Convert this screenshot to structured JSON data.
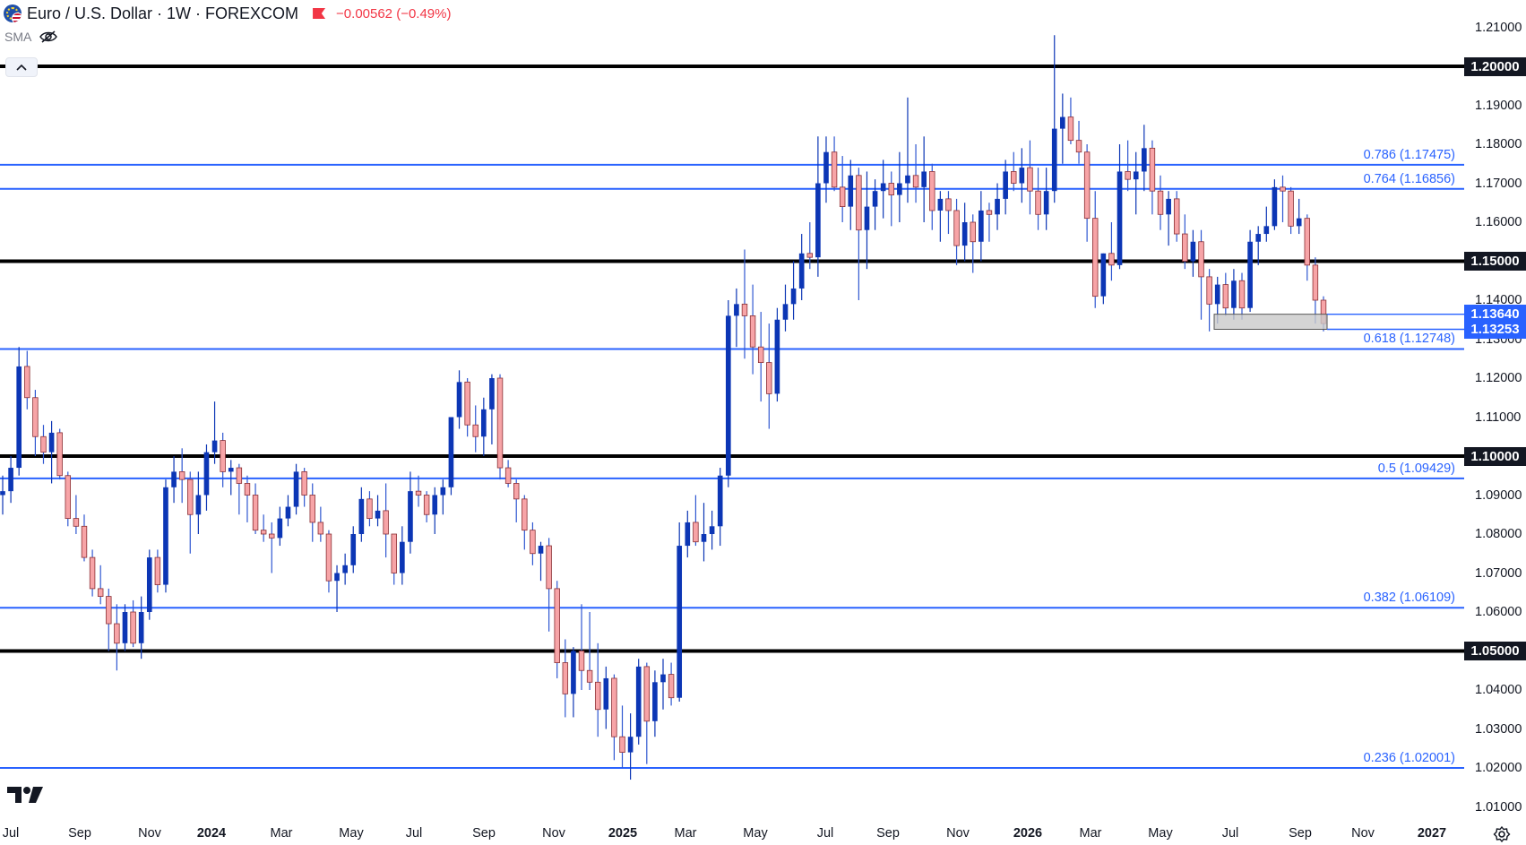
{
  "header": {
    "symbol": "Euro / U.S. Dollar · 1W · FOREXCOM",
    "change": "−0.00562 (−0.49%)",
    "indicator": "SMA",
    "icons": [
      "eur-usd-flag-icon",
      "red-flag-icon",
      "eye-hidden-icon",
      "chevron-up-icon",
      "tradingview-logo-icon",
      "settings-icon"
    ]
  },
  "colors": {
    "bull": "#0c36b5",
    "bear": "#f7a4a7",
    "bear_border": "#8a2f34",
    "wick_bull": "#0c36b5",
    "wick_bear": "#2f57d1",
    "fib": "#2962ff",
    "level": "#000000",
    "zone": "#c9c9c9"
  },
  "price_axis": {
    "ticks": [
      "1.21000",
      "1.20000",
      "1.19000",
      "1.18000",
      "1.17000",
      "1.16000",
      "1.15000",
      "1.14000",
      "1.13000",
      "1.12000",
      "1.11000",
      "1.10000",
      "1.09000",
      "1.08000",
      "1.07000",
      "1.06000",
      "1.05000",
      "1.04000",
      "1.03000",
      "1.02000",
      "1.01000"
    ],
    "tags": [
      {
        "value": 1.2,
        "text": "1.20000",
        "style": "dark"
      },
      {
        "value": 1.15,
        "text": "1.15000",
        "style": "dark"
      },
      {
        "value": 1.1,
        "text": "1.10000",
        "style": "dark"
      },
      {
        "value": 1.05,
        "text": "1.05000",
        "style": "dark"
      },
      {
        "value": 1.1364,
        "text": "1.13640",
        "style": "blue"
      },
      {
        "value": 1.13253,
        "text": "1.13253",
        "style": "blue"
      }
    ]
  },
  "time_axis": {
    "labels": [
      {
        "text": "Jul",
        "bold": false
      },
      {
        "text": "Sep",
        "bold": false
      },
      {
        "text": "Nov",
        "bold": false
      },
      {
        "text": "2024",
        "bold": true
      },
      {
        "text": "Mar",
        "bold": false
      },
      {
        "text": "May",
        "bold": false
      },
      {
        "text": "Jul",
        "bold": false
      },
      {
        "text": "Sep",
        "bold": false
      },
      {
        "text": "Nov",
        "bold": false
      },
      {
        "text": "2025",
        "bold": true
      },
      {
        "text": "Mar",
        "bold": false
      },
      {
        "text": "May",
        "bold": false
      },
      {
        "text": "Jul",
        "bold": false
      },
      {
        "text": "Sep",
        "bold": false
      },
      {
        "text": "Nov",
        "bold": false
      },
      {
        "text": "2026",
        "bold": true
      },
      {
        "text": "Mar",
        "bold": false
      },
      {
        "text": "May",
        "bold": false
      },
      {
        "text": "Jul",
        "bold": false
      },
      {
        "text": "Sep",
        "bold": false
      },
      {
        "text": "Nov",
        "bold": false
      },
      {
        "text": "2027",
        "bold": true
      }
    ]
  },
  "chart_data": {
    "type": "candlestick",
    "title": "Euro / U.S. Dollar · 1W · FOREXCOM",
    "ylim": [
      1.005,
      1.215
    ],
    "horizontal_levels": [
      1.2,
      1.15,
      1.1,
      1.05
    ],
    "fib_levels": [
      {
        "ratio": "0.786",
        "value": 1.17475,
        "label": "0.786 (1.17475)"
      },
      {
        "ratio": "0.764",
        "value": 1.16856,
        "label": "0.764 (1.16856)"
      },
      {
        "ratio": "0.618",
        "value": 1.12748,
        "label": "0.618 (1.12748)"
      },
      {
        "ratio": "0.5",
        "value": 1.09429,
        "label": "0.5 (1.09429)"
      },
      {
        "ratio": "0.382",
        "value": 1.06109,
        "label": "0.382 (1.06109)"
      },
      {
        "ratio": "0.236",
        "value": 1.02001,
        "label": "0.236 (1.02001)"
      }
    ],
    "support_zone": {
      "top": 1.1364,
      "bottom": 1.13253
    },
    "candles": [
      [
        1.09,
        1.095,
        1.085,
        1.091
      ],
      [
        1.091,
        1.1,
        1.088,
        1.097
      ],
      [
        1.097,
        1.128,
        1.095,
        1.123
      ],
      [
        1.123,
        1.127,
        1.112,
        1.115
      ],
      [
        1.115,
        1.117,
        1.1,
        1.105
      ],
      [
        1.105,
        1.108,
        1.098,
        1.101
      ],
      [
        1.101,
        1.109,
        1.093,
        1.106
      ],
      [
        1.106,
        1.107,
        1.094,
        1.095
      ],
      [
        1.095,
        1.096,
        1.082,
        1.084
      ],
      [
        1.084,
        1.09,
        1.08,
        1.082
      ],
      [
        1.082,
        1.085,
        1.073,
        1.074
      ],
      [
        1.074,
        1.076,
        1.064,
        1.066
      ],
      [
        1.066,
        1.072,
        1.062,
        1.064
      ],
      [
        1.064,
        1.066,
        1.05,
        1.057
      ],
      [
        1.057,
        1.062,
        1.045,
        1.052
      ],
      [
        1.052,
        1.062,
        1.05,
        1.06
      ],
      [
        1.06,
        1.063,
        1.051,
        1.052
      ],
      [
        1.052,
        1.064,
        1.048,
        1.06
      ],
      [
        1.06,
        1.076,
        1.058,
        1.074
      ],
      [
        1.074,
        1.076,
        1.065,
        1.067
      ],
      [
        1.067,
        1.094,
        1.065,
        1.092
      ],
      [
        1.092,
        1.1,
        1.088,
        1.096
      ],
      [
        1.096,
        1.102,
        1.088,
        1.094
      ],
      [
        1.094,
        1.096,
        1.075,
        1.085
      ],
      [
        1.085,
        1.096,
        1.08,
        1.09
      ],
      [
        1.09,
        1.103,
        1.086,
        1.101
      ],
      [
        1.101,
        1.114,
        1.098,
        1.104
      ],
      [
        1.104,
        1.106,
        1.092,
        1.096
      ],
      [
        1.096,
        1.099,
        1.09,
        1.097
      ],
      [
        1.097,
        1.098,
        1.085,
        1.093
      ],
      [
        1.093,
        1.095,
        1.083,
        1.09
      ],
      [
        1.09,
        1.093,
        1.08,
        1.081
      ],
      [
        1.081,
        1.085,
        1.078,
        1.08
      ],
      [
        1.08,
        1.083,
        1.07,
        1.079
      ],
      [
        1.079,
        1.087,
        1.077,
        1.084
      ],
      [
        1.084,
        1.09,
        1.082,
        1.087
      ],
      [
        1.087,
        1.098,
        1.085,
        1.096
      ],
      [
        1.096,
        1.097,
        1.087,
        1.09
      ],
      [
        1.09,
        1.093,
        1.078,
        1.083
      ],
      [
        1.083,
        1.087,
        1.078,
        1.08
      ],
      [
        1.08,
        1.081,
        1.065,
        1.068
      ],
      [
        1.068,
        1.072,
        1.06,
        1.07
      ],
      [
        1.07,
        1.075,
        1.067,
        1.072
      ],
      [
        1.072,
        1.082,
        1.07,
        1.08
      ],
      [
        1.08,
        1.092,
        1.078,
        1.089
      ],
      [
        1.089,
        1.091,
        1.082,
        1.084
      ],
      [
        1.084,
        1.09,
        1.082,
        1.086
      ],
      [
        1.086,
        1.093,
        1.074,
        1.08
      ],
      [
        1.08,
        1.08,
        1.067,
        1.07
      ],
      [
        1.07,
        1.082,
        1.067,
        1.078
      ],
      [
        1.078,
        1.096,
        1.075,
        1.091
      ],
      [
        1.091,
        1.095,
        1.087,
        1.09
      ],
      [
        1.09,
        1.091,
        1.083,
        1.085
      ],
      [
        1.085,
        1.092,
        1.08,
        1.09
      ],
      [
        1.09,
        1.094,
        1.085,
        1.092
      ],
      [
        1.092,
        1.108,
        1.09,
        1.11
      ],
      [
        1.11,
        1.122,
        1.107,
        1.119
      ],
      [
        1.119,
        1.12,
        1.105,
        1.108
      ],
      [
        1.108,
        1.113,
        1.101,
        1.105
      ],
      [
        1.105,
        1.115,
        1.1,
        1.112
      ],
      [
        1.112,
        1.121,
        1.103,
        1.12
      ],
      [
        1.12,
        1.121,
        1.094,
        1.097
      ],
      [
        1.097,
        1.099,
        1.092,
        1.093
      ],
      [
        1.093,
        1.094,
        1.083,
        1.089
      ],
      [
        1.089,
        1.09,
        1.076,
        1.081
      ],
      [
        1.081,
        1.083,
        1.072,
        1.075
      ],
      [
        1.075,
        1.078,
        1.068,
        1.077
      ],
      [
        1.077,
        1.079,
        1.055,
        1.066
      ],
      [
        1.066,
        1.068,
        1.043,
        1.047
      ],
      [
        1.047,
        1.053,
        1.033,
        1.039
      ],
      [
        1.039,
        1.051,
        1.033,
        1.05
      ],
      [
        1.05,
        1.062,
        1.04,
        1.045
      ],
      [
        1.045,
        1.06,
        1.04,
        1.042
      ],
      [
        1.042,
        1.052,
        1.028,
        1.035
      ],
      [
        1.035,
        1.046,
        1.03,
        1.043
      ],
      [
        1.043,
        1.044,
        1.022,
        1.028
      ],
      [
        1.028,
        1.036,
        1.02,
        1.024
      ],
      [
        1.024,
        1.034,
        1.017,
        1.028
      ],
      [
        1.028,
        1.048,
        1.026,
        1.046
      ],
      [
        1.046,
        1.047,
        1.021,
        1.032
      ],
      [
        1.032,
        1.045,
        1.028,
        1.042
      ],
      [
        1.042,
        1.048,
        1.035,
        1.044
      ],
      [
        1.044,
        1.047,
        1.036,
        1.038
      ],
      [
        1.038,
        1.083,
        1.037,
        1.077
      ],
      [
        1.077,
        1.086,
        1.074,
        1.083
      ],
      [
        1.083,
        1.09,
        1.077,
        1.078
      ],
      [
        1.078,
        1.088,
        1.073,
        1.08
      ],
      [
        1.08,
        1.086,
        1.076,
        1.082
      ],
      [
        1.082,
        1.097,
        1.077,
        1.095
      ],
      [
        1.095,
        1.14,
        1.092,
        1.136
      ],
      [
        1.136,
        1.143,
        1.128,
        1.139
      ],
      [
        1.139,
        1.153,
        1.125,
        1.136
      ],
      [
        1.136,
        1.144,
        1.121,
        1.128
      ],
      [
        1.128,
        1.137,
        1.114,
        1.124
      ],
      [
        1.124,
        1.134,
        1.107,
        1.116
      ],
      [
        1.116,
        1.138,
        1.114,
        1.135
      ],
      [
        1.135,
        1.144,
        1.132,
        1.139
      ],
      [
        1.139,
        1.15,
        1.135,
        1.143
      ],
      [
        1.143,
        1.157,
        1.14,
        1.152
      ],
      [
        1.152,
        1.16,
        1.148,
        1.151
      ],
      [
        1.151,
        1.182,
        1.146,
        1.17
      ],
      [
        1.17,
        1.182,
        1.165,
        1.178
      ],
      [
        1.178,
        1.182,
        1.168,
        1.169
      ],
      [
        1.169,
        1.177,
        1.16,
        1.164
      ],
      [
        1.164,
        1.176,
        1.158,
        1.172
      ],
      [
        1.172,
        1.174,
        1.14,
        1.158
      ],
      [
        1.158,
        1.173,
        1.148,
        1.164
      ],
      [
        1.164,
        1.171,
        1.158,
        1.168
      ],
      [
        1.168,
        1.176,
        1.161,
        1.17
      ],
      [
        1.17,
        1.173,
        1.159,
        1.167
      ],
      [
        1.167,
        1.178,
        1.16,
        1.17
      ],
      [
        1.17,
        1.192,
        1.165,
        1.172
      ],
      [
        1.172,
        1.18,
        1.165,
        1.169
      ],
      [
        1.169,
        1.182,
        1.16,
        1.173
      ],
      [
        1.173,
        1.175,
        1.158,
        1.163
      ],
      [
        1.163,
        1.168,
        1.155,
        1.166
      ],
      [
        1.166,
        1.168,
        1.157,
        1.163
      ],
      [
        1.163,
        1.166,
        1.149,
        1.154
      ],
      [
        1.154,
        1.165,
        1.15,
        1.16
      ],
      [
        1.16,
        1.162,
        1.147,
        1.155
      ],
      [
        1.155,
        1.168,
        1.15,
        1.163
      ],
      [
        1.163,
        1.165,
        1.155,
        1.162
      ],
      [
        1.162,
        1.17,
        1.158,
        1.166
      ],
      [
        1.166,
        1.176,
        1.162,
        1.173
      ],
      [
        1.173,
        1.178,
        1.168,
        1.17
      ],
      [
        1.17,
        1.179,
        1.165,
        1.174
      ],
      [
        1.174,
        1.181,
        1.162,
        1.168
      ],
      [
        1.168,
        1.174,
        1.158,
        1.162
      ],
      [
        1.162,
        1.174,
        1.158,
        1.168
      ],
      [
        1.168,
        1.208,
        1.165,
        1.184
      ],
      [
        1.184,
        1.193,
        1.175,
        1.187
      ],
      [
        1.187,
        1.192,
        1.18,
        1.181
      ],
      [
        1.181,
        1.186,
        1.175,
        1.178
      ],
      [
        1.178,
        1.18,
        1.155,
        1.161
      ],
      [
        1.161,
        1.168,
        1.138,
        1.141
      ],
      [
        1.141,
        1.152,
        1.139,
        1.152
      ],
      [
        1.152,
        1.16,
        1.145,
        1.149
      ],
      [
        1.149,
        1.18,
        1.148,
        1.173
      ],
      [
        1.173,
        1.181,
        1.168,
        1.171
      ],
      [
        1.171,
        1.178,
        1.162,
        1.173
      ],
      [
        1.173,
        1.185,
        1.168,
        1.179
      ],
      [
        1.179,
        1.181,
        1.162,
        1.168
      ],
      [
        1.168,
        1.172,
        1.158,
        1.162
      ],
      [
        1.162,
        1.168,
        1.154,
        1.166
      ],
      [
        1.166,
        1.168,
        1.155,
        1.157
      ],
      [
        1.157,
        1.162,
        1.148,
        1.15
      ],
      [
        1.15,
        1.158,
        1.146,
        1.155
      ],
      [
        1.155,
        1.158,
        1.135,
        1.146
      ],
      [
        1.146,
        1.148,
        1.132,
        1.139
      ],
      [
        1.139,
        1.146,
        1.134,
        1.144
      ],
      [
        1.144,
        1.147,
        1.136,
        1.138
      ],
      [
        1.138,
        1.148,
        1.135,
        1.145
      ],
      [
        1.145,
        1.147,
        1.135,
        1.138
      ],
      [
        1.138,
        1.158,
        1.137,
        1.155
      ],
      [
        1.155,
        1.159,
        1.149,
        1.157
      ],
      [
        1.157,
        1.164,
        1.155,
        1.159
      ],
      [
        1.159,
        1.171,
        1.158,
        1.169
      ],
      [
        1.169,
        1.172,
        1.16,
        1.168
      ],
      [
        1.168,
        1.169,
        1.157,
        1.159
      ],
      [
        1.159,
        1.166,
        1.157,
        1.161
      ],
      [
        1.161,
        1.162,
        1.145,
        1.149
      ],
      [
        1.149,
        1.151,
        1.134,
        1.14
      ],
      [
        1.14,
        1.141,
        1.132,
        1.134
      ]
    ]
  }
}
